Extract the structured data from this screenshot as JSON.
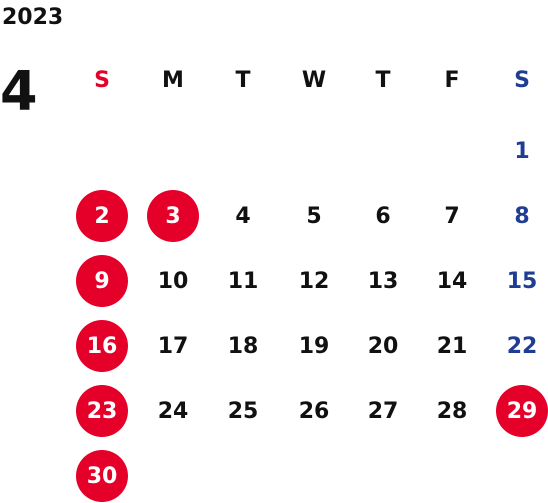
{
  "header": {
    "year": "2023",
    "month": "4"
  },
  "weekdays": [
    "S",
    "M",
    "T",
    "W",
    "T",
    "F",
    "S"
  ],
  "colors": {
    "sunday": "#e5002a",
    "saturday": "#1f3e93",
    "weekday": "#111111",
    "holiday": "#e5002a",
    "holiday_text": "#ffffff"
  },
  "weeks": [
    [
      null,
      null,
      null,
      null,
      null,
      null,
      {
        "day": 1,
        "holiday": false
      }
    ],
    [
      {
        "day": 2,
        "holiday": true
      },
      {
        "day": 3,
        "holiday": true
      },
      {
        "day": 4,
        "holiday": false
      },
      {
        "day": 5,
        "holiday": false
      },
      {
        "day": 6,
        "holiday": false
      },
      {
        "day": 7,
        "holiday": false
      },
      {
        "day": 8,
        "holiday": false
      }
    ],
    [
      {
        "day": 9,
        "holiday": true
      },
      {
        "day": 10,
        "holiday": false
      },
      {
        "day": 11,
        "holiday": false
      },
      {
        "day": 12,
        "holiday": false
      },
      {
        "day": 13,
        "holiday": false
      },
      {
        "day": 14,
        "holiday": false
      },
      {
        "day": 15,
        "holiday": false
      }
    ],
    [
      {
        "day": 16,
        "holiday": true
      },
      {
        "day": 17,
        "holiday": false
      },
      {
        "day": 18,
        "holiday": false
      },
      {
        "day": 19,
        "holiday": false
      },
      {
        "day": 20,
        "holiday": false
      },
      {
        "day": 21,
        "holiday": false
      },
      {
        "day": 22,
        "holiday": false
      }
    ],
    [
      {
        "day": 23,
        "holiday": true
      },
      {
        "day": 24,
        "holiday": false
      },
      {
        "day": 25,
        "holiday": false
      },
      {
        "day": 26,
        "holiday": false
      },
      {
        "day": 27,
        "holiday": false
      },
      {
        "day": 28,
        "holiday": false
      },
      {
        "day": 29,
        "holiday": true
      }
    ],
    [
      {
        "day": 30,
        "holiday": true
      },
      null,
      null,
      null,
      null,
      null,
      null
    ]
  ]
}
